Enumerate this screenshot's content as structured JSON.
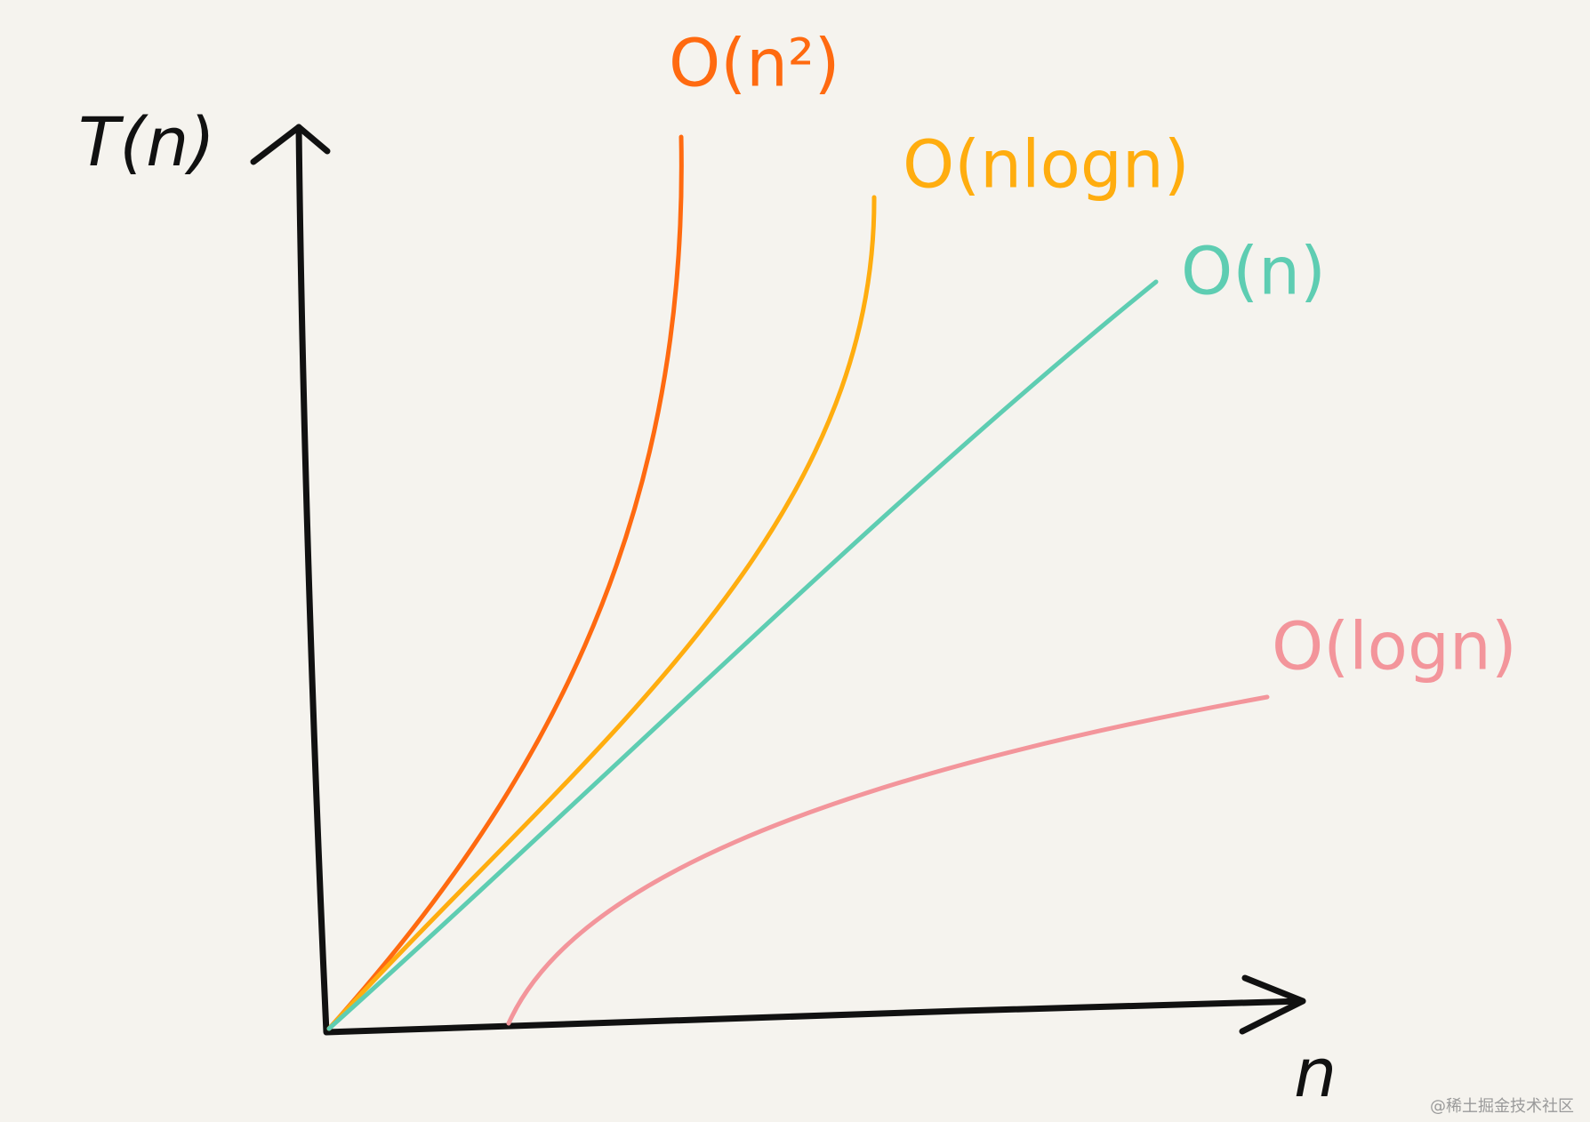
{
  "axes": {
    "y_label": "T(n)",
    "x_label": "n"
  },
  "curves": [
    {
      "label": "O(n²)",
      "color": "#ff6a10"
    },
    {
      "label": "O(nlogn)",
      "color": "#ffad0f"
    },
    {
      "label": "O(n)",
      "color": "#5ecdb2"
    },
    {
      "label": "O(logn)",
      "color": "#f3959b"
    }
  ],
  "watermark": "@稀土掘金技术社区"
}
